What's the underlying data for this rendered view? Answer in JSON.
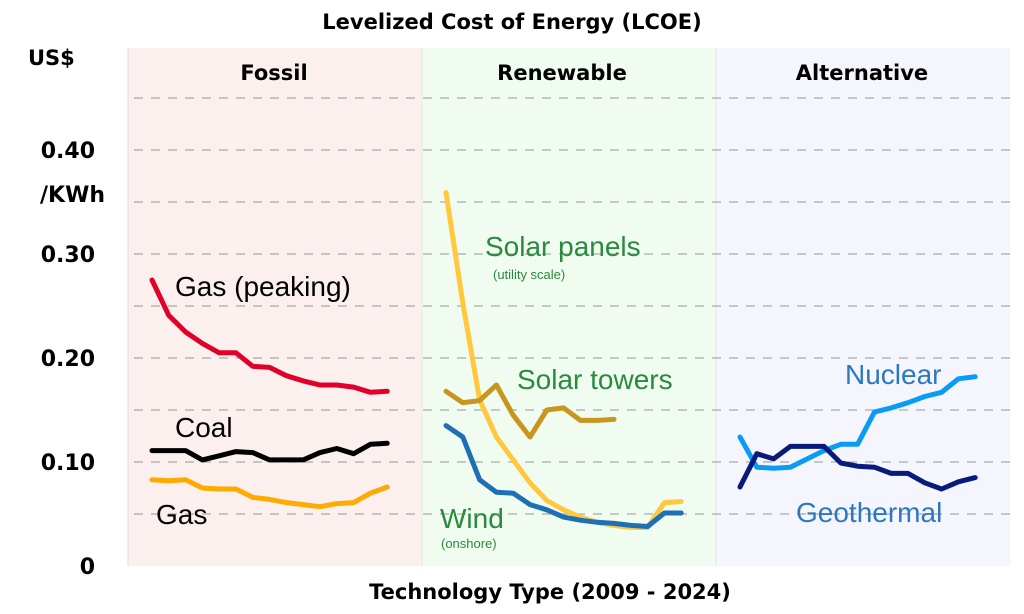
{
  "chart_data": {
    "type": "line",
    "title": "Levelized Cost of Energy (LCOE)",
    "xlabel": "Technology Type (2009 - 2024)",
    "ylabel_unit": "US$",
    "ylabel_per": "/KWh",
    "ylim": [
      0,
      0.45
    ],
    "yticks": [
      {
        "v": 0,
        "label": "0"
      },
      {
        "v": 0.1,
        "label": "0.10"
      },
      {
        "v": 0.2,
        "label": "0.20"
      },
      {
        "v": 0.3,
        "label": "0.30"
      },
      {
        "v": 0.4,
        "label": "0.40"
      }
    ],
    "grid": "dashed every 0.05",
    "panels": [
      {
        "name": "Fossil",
        "bg": "#fcf0ef",
        "series": [
          {
            "name": "Gas (peaking)",
            "color": "#e0002a",
            "label_color": "#000000",
            "values": [
              0.275,
              0.241,
              0.225,
              0.214,
              0.205,
              0.205,
              0.192,
              0.191,
              0.183,
              0.178,
              0.174,
              0.174,
              0.172,
              0.167,
              0.168
            ]
          },
          {
            "name": "Coal",
            "color": "#000000",
            "label_color": "#000000",
            "values": [
              0.111,
              0.111,
              0.111,
              0.102,
              0.106,
              0.11,
              0.109,
              0.102,
              0.102,
              0.102,
              0.109,
              0.113,
              0.108,
              0.117,
              0.118
            ]
          },
          {
            "name": "Gas",
            "color": "#ffaa00",
            "label_color": "#000000",
            "values": [
              0.083,
              0.082,
              0.083,
              0.075,
              0.074,
              0.074,
              0.066,
              0.064,
              0.061,
              0.059,
              0.057,
              0.06,
              0.061,
              0.07,
              0.076
            ]
          }
        ]
      },
      {
        "name": "Renewable",
        "bg": "#effcef",
        "series": [
          {
            "name": "Solar panels",
            "sub": "(utility scale)",
            "color": "#ffc83d",
            "label_color": "#2a8a3e",
            "values": [
              0.359,
              0.253,
              0.16,
              0.124,
              0.102,
              0.08,
              0.063,
              0.054,
              0.047,
              0.042,
              0.039,
              0.037,
              0.037,
              0.061,
              0.062
            ]
          },
          {
            "name": "Solar towers",
            "color": "#c8961e",
            "label_color": "#2a8a3e",
            "values": [
              0.168,
              0.157,
              0.159,
              0.174,
              0.145,
              0.124,
              0.15,
              0.152,
              0.14,
              0.14,
              0.141
            ]
          },
          {
            "name": "Wind",
            "sub": "(onshore)",
            "color": "#1f6fb5",
            "label_color": "#2a8a3e",
            "values": [
              0.135,
              0.124,
              0.083,
              0.071,
              0.07,
              0.059,
              0.054,
              0.047,
              0.044,
              0.042,
              0.041,
              0.039,
              0.038,
              0.051,
              0.051
            ]
          }
        ]
      },
      {
        "name": "Alternative",
        "bg": "#f5f5fe",
        "series": [
          {
            "name": "Nuclear",
            "color": "#0a9bf5",
            "label_color": "#2b78c0",
            "values": [
              0.124,
              0.095,
              0.094,
              0.095,
              0.103,
              0.111,
              0.117,
              0.117,
              0.148,
              0.152,
              0.157,
              0.163,
              0.167,
              0.18,
              0.182
            ]
          },
          {
            "name": "Geothermal",
            "color": "#0a1a7a",
            "label_color": "#2b78c0",
            "values": [
              0.076,
              0.108,
              0.103,
              0.115,
              0.115,
              0.115,
              0.099,
              0.096,
              0.095,
              0.089,
              0.089,
              0.08,
              0.074,
              0.081,
              0.085
            ]
          }
        ]
      }
    ]
  }
}
